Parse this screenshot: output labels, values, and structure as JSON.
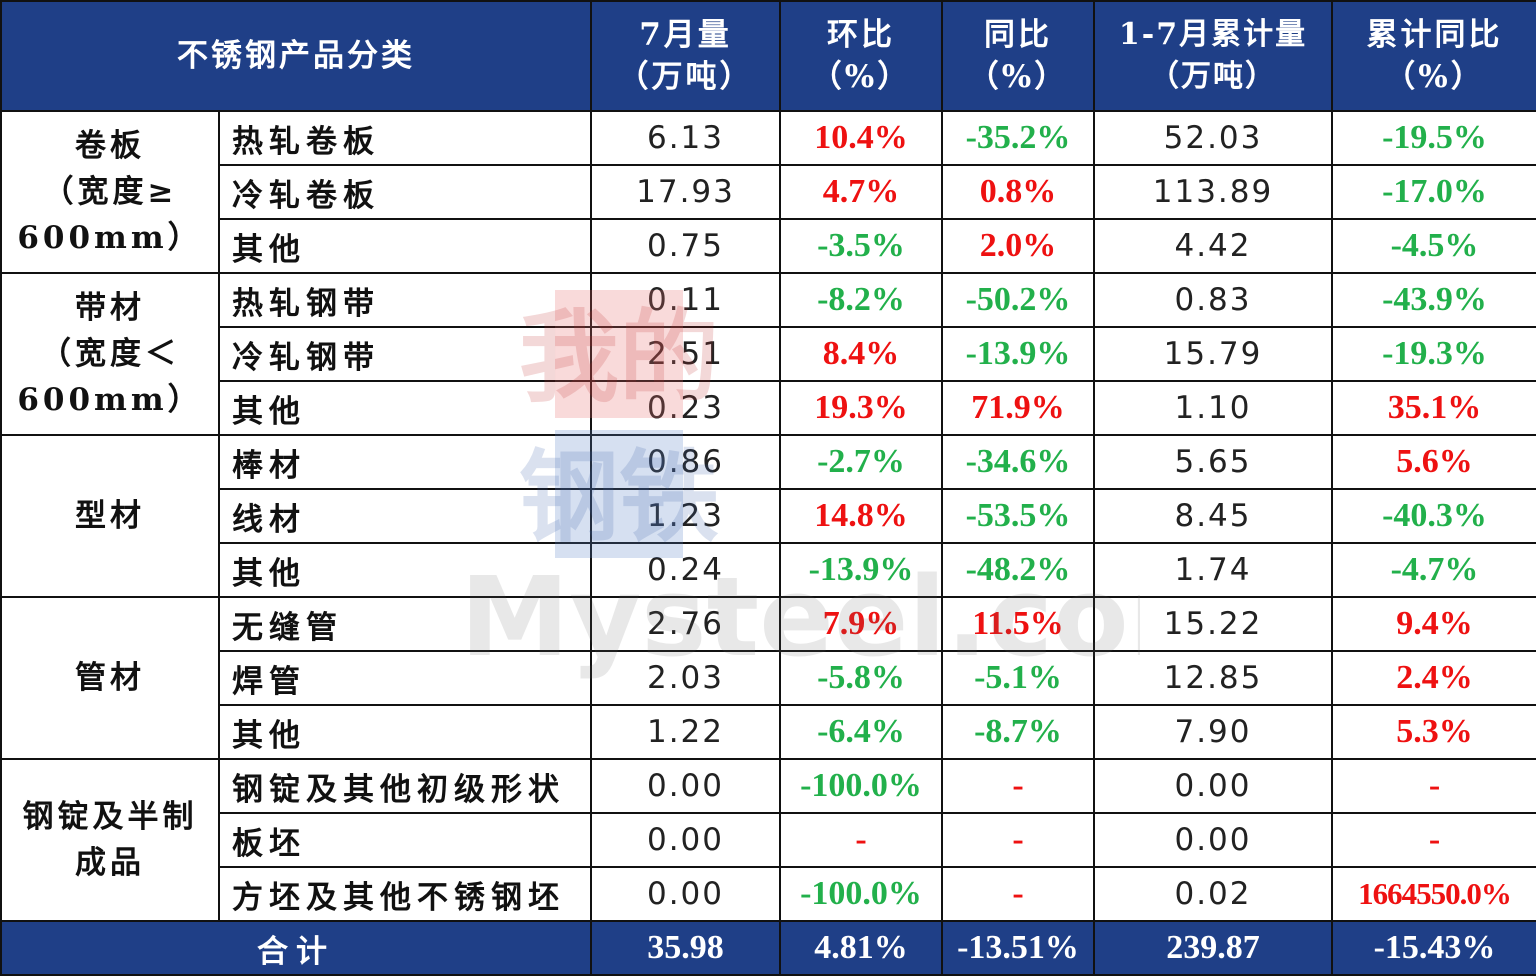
{
  "chart_data": {
    "type": "table",
    "headers": [
      {
        "line1": "不锈钢产品分类",
        "line2": ""
      },
      {
        "line1": "7月量",
        "line2": "（万吨）"
      },
      {
        "line1": "环比",
        "line2": "（%）"
      },
      {
        "line1": "同比",
        "line2": "（%）"
      },
      {
        "line1": "1-7月累计量",
        "line2": "（万吨）"
      },
      {
        "line1": "累计同比",
        "line2": "（%）"
      }
    ],
    "groups": [
      {
        "name_lines": [
          "卷板",
          "（宽度≥",
          "600mm）"
        ],
        "rows": [
          {
            "name": "热轧卷板",
            "july": "6.13",
            "mom": "10.4%",
            "yoy": "-35.2%",
            "cum": "52.03",
            "cum_yoy": "-19.5%"
          },
          {
            "name": "冷轧卷板",
            "july": "17.93",
            "mom": "4.7%",
            "yoy": "0.8%",
            "cum": "113.89",
            "cum_yoy": "-17.0%"
          },
          {
            "name": "其他",
            "july": "0.75",
            "mom": "-3.5%",
            "yoy": "2.0%",
            "cum": "4.42",
            "cum_yoy": "-4.5%"
          }
        ]
      },
      {
        "name_lines": [
          "带材",
          "（宽度＜",
          "600mm）"
        ],
        "rows": [
          {
            "name": "热轧钢带",
            "july": "0.11",
            "mom": "-8.2%",
            "yoy": "-50.2%",
            "cum": "0.83",
            "cum_yoy": "-43.9%"
          },
          {
            "name": "冷轧钢带",
            "july": "2.51",
            "mom": "8.4%",
            "yoy": "-13.9%",
            "cum": "15.79",
            "cum_yoy": "-19.3%"
          },
          {
            "name": "其他",
            "july": "0.23",
            "mom": "19.3%",
            "yoy": "71.9%",
            "cum": "1.10",
            "cum_yoy": "35.1%"
          }
        ]
      },
      {
        "name_lines": [
          "型材"
        ],
        "rows": [
          {
            "name": "棒材",
            "july": "0.86",
            "mom": "-2.7%",
            "yoy": "-34.6%",
            "cum": "5.65",
            "cum_yoy": "5.6%"
          },
          {
            "name": "线材",
            "july": "1.23",
            "mom": "14.8%",
            "yoy": "-53.5%",
            "cum": "8.45",
            "cum_yoy": "-40.3%"
          },
          {
            "name": "其他",
            "july": "0.24",
            "mom": "-13.9%",
            "yoy": "-48.2%",
            "cum": "1.74",
            "cum_yoy": "-4.7%"
          }
        ]
      },
      {
        "name_lines": [
          "管材"
        ],
        "rows": [
          {
            "name": "无缝管",
            "july": "2.76",
            "mom": "7.9%",
            "yoy": "11.5%",
            "cum": "15.22",
            "cum_yoy": "9.4%"
          },
          {
            "name": "焊管",
            "july": "2.03",
            "mom": "-5.8%",
            "yoy": "-5.1%",
            "cum": "12.85",
            "cum_yoy": "2.4%"
          },
          {
            "name": "其他",
            "july": "1.22",
            "mom": "-6.4%",
            "yoy": "-8.7%",
            "cum": "7.90",
            "cum_yoy": "5.3%"
          }
        ]
      },
      {
        "name_lines": [
          "钢锭及半制",
          "成品"
        ],
        "rows": [
          {
            "name": "钢锭及其他初级形状",
            "july": "0.00",
            "mom": "-100.0%",
            "yoy": "-",
            "cum": "0.00",
            "cum_yoy": "-"
          },
          {
            "name": "板坯",
            "july": "0.00",
            "mom": "-",
            "yoy": "-",
            "cum": "0.00",
            "cum_yoy": "-"
          },
          {
            "name": "方坯及其他不锈钢坯",
            "july": "0.00",
            "mom": "-100.0%",
            "yoy": "-",
            "cum": "0.02",
            "cum_yoy": "1664550.0%"
          }
        ]
      }
    ],
    "total": {
      "label": "合计",
      "july": "35.98",
      "mom": "4.81%",
      "yoy": "-13.51%",
      "cum": "239.87",
      "cum_yoy": "-15.43%"
    }
  },
  "watermark": {
    "line1": "我的",
    "line2": "钢铁",
    "brand": "Mysteel.com"
  },
  "colors": {
    "header_bg": "#1f3f87",
    "positive": "#ee1111",
    "negative": "#22b04b",
    "border": "#111111"
  }
}
